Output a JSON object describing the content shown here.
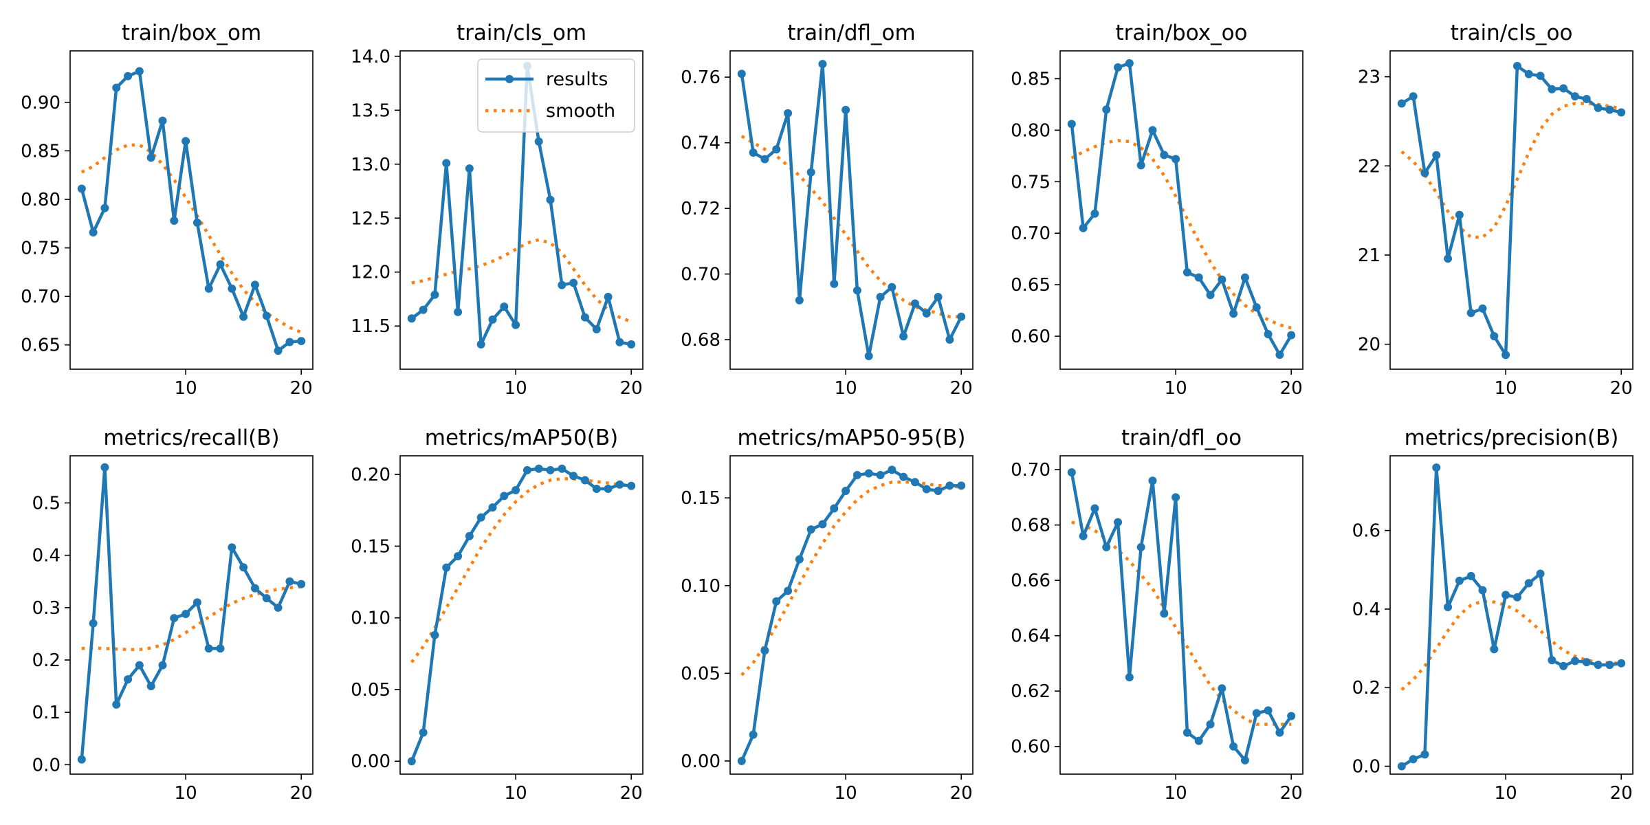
{
  "colors": {
    "results": "#1f77b4",
    "smooth": "#ff7f0e",
    "axes": "#000000",
    "legend_border": "#cccccc"
  },
  "legend": {
    "results_label": "results",
    "smooth_label": "smooth",
    "placement": "top-right",
    "panel": 1
  },
  "chart_data": [
    {
      "type": "line",
      "title": "train/box_om",
      "xlabel": "",
      "ylabel": "",
      "xlim": [
        0,
        21
      ],
      "ylim": [
        0.625,
        0.953
      ],
      "xticks": [
        10,
        20
      ],
      "yticks": [
        0.65,
        0.7,
        0.75,
        0.8,
        0.85,
        0.9
      ],
      "ytick_labels": [
        "0.65",
        "0.70",
        "0.75",
        "0.80",
        "0.85",
        "0.90"
      ],
      "x": [
        1,
        2,
        3,
        4,
        5,
        6,
        7,
        8,
        9,
        10,
        11,
        12,
        13,
        14,
        15,
        16,
        17,
        18,
        19,
        20
      ],
      "series": [
        {
          "name": "results",
          "style": "line-marker",
          "values": [
            0.811,
            0.766,
            0.791,
            0.915,
            0.927,
            0.932,
            0.843,
            0.881,
            0.778,
            0.86,
            0.776,
            0.708,
            0.733,
            0.708,
            0.679,
            0.712,
            0.68,
            0.644,
            0.653,
            0.654
          ]
        },
        {
          "name": "smooth",
          "style": "dotted",
          "values": [
            0.828,
            0.834,
            0.843,
            0.851,
            0.856,
            0.856,
            0.849,
            0.836,
            0.82,
            0.802,
            0.783,
            0.763,
            0.743,
            0.724,
            0.707,
            0.694,
            0.683,
            0.675,
            0.668,
            0.663
          ]
        }
      ]
    },
    {
      "type": "line",
      "title": "train/cls_om",
      "xlabel": "",
      "ylabel": "",
      "xlim": [
        0,
        21
      ],
      "ylim": [
        11.1,
        14.05
      ],
      "xticks": [
        10,
        20
      ],
      "yticks": [
        11.5,
        12.0,
        12.5,
        13.0,
        13.5,
        14.0
      ],
      "ytick_labels": [
        "11.5",
        "12.0",
        "12.5",
        "13.0",
        "13.5",
        "14.0"
      ],
      "x": [
        1,
        2,
        3,
        4,
        5,
        6,
        7,
        8,
        9,
        10,
        11,
        12,
        13,
        14,
        15,
        16,
        17,
        18,
        19,
        20
      ],
      "series": [
        {
          "name": "results",
          "style": "line-marker",
          "values": [
            11.57,
            11.65,
            11.79,
            13.01,
            11.63,
            12.96,
            11.33,
            11.56,
            11.68,
            11.51,
            13.91,
            13.21,
            12.67,
            11.88,
            11.9,
            11.58,
            11.47,
            11.77,
            11.35,
            11.33
          ]
        },
        {
          "name": "smooth",
          "style": "dotted",
          "values": [
            11.9,
            11.92,
            11.95,
            11.98,
            12.01,
            12.03,
            12.06,
            12.1,
            12.15,
            12.21,
            12.27,
            12.3,
            12.27,
            12.18,
            12.03,
            11.88,
            11.75,
            11.65,
            11.58,
            11.54
          ]
        }
      ]
    },
    {
      "type": "line",
      "title": "train/dfl_om",
      "xlabel": "",
      "ylabel": "",
      "xlim": [
        0,
        21
      ],
      "ylim": [
        0.671,
        0.768
      ],
      "xticks": [
        10,
        20
      ],
      "yticks": [
        0.68,
        0.7,
        0.72,
        0.74,
        0.76
      ],
      "ytick_labels": [
        "0.68",
        "0.70",
        "0.72",
        "0.74",
        "0.76"
      ],
      "x": [
        1,
        2,
        3,
        4,
        5,
        6,
        7,
        8,
        9,
        10,
        11,
        12,
        13,
        14,
        15,
        16,
        17,
        18,
        19,
        20
      ],
      "series": [
        {
          "name": "results",
          "style": "line-marker",
          "values": [
            0.761,
            0.737,
            0.735,
            0.738,
            0.749,
            0.692,
            0.731,
            0.764,
            0.697,
            0.75,
            0.695,
            0.675,
            0.693,
            0.696,
            0.681,
            0.691,
            0.688,
            0.693,
            0.68,
            0.687
          ]
        },
        {
          "name": "smooth",
          "style": "dotted",
          "values": [
            0.742,
            0.74,
            0.738,
            0.736,
            0.733,
            0.73,
            0.726,
            0.722,
            0.717,
            0.712,
            0.707,
            0.702,
            0.698,
            0.695,
            0.692,
            0.69,
            0.689,
            0.688,
            0.687,
            0.687
          ]
        }
      ]
    },
    {
      "type": "line",
      "title": "train/box_oo",
      "xlabel": "",
      "ylabel": "",
      "xlim": [
        0,
        21
      ],
      "ylim": [
        0.568,
        0.877
      ],
      "xticks": [
        10,
        20
      ],
      "yticks": [
        0.6,
        0.65,
        0.7,
        0.75,
        0.8,
        0.85
      ],
      "ytick_labels": [
        "0.60",
        "0.65",
        "0.70",
        "0.75",
        "0.80",
        "0.85"
      ],
      "x": [
        1,
        2,
        3,
        4,
        5,
        6,
        7,
        8,
        9,
        10,
        11,
        12,
        13,
        14,
        15,
        16,
        17,
        18,
        19,
        20
      ],
      "series": [
        {
          "name": "results",
          "style": "line-marker",
          "values": [
            0.806,
            0.705,
            0.719,
            0.82,
            0.861,
            0.865,
            0.766,
            0.8,
            0.776,
            0.772,
            0.662,
            0.657,
            0.64,
            0.655,
            0.622,
            0.657,
            0.628,
            0.602,
            0.582,
            0.601
          ]
        },
        {
          "name": "smooth",
          "style": "dotted",
          "values": [
            0.773,
            0.779,
            0.784,
            0.788,
            0.79,
            0.789,
            0.783,
            0.772,
            0.756,
            0.736,
            0.714,
            0.692,
            0.672,
            0.655,
            0.641,
            0.63,
            0.622,
            0.616,
            0.611,
            0.608
          ]
        }
      ]
    },
    {
      "type": "line",
      "title": "train/cls_oo",
      "xlabel": "",
      "ylabel": "",
      "xlim": [
        0,
        21
      ],
      "ylim": [
        19.72,
        23.29
      ],
      "xticks": [
        10,
        20
      ],
      "yticks": [
        20,
        21,
        22,
        23
      ],
      "ytick_labels": [
        "20",
        "21",
        "22",
        "23"
      ],
      "x": [
        1,
        2,
        3,
        4,
        5,
        6,
        7,
        8,
        9,
        10,
        11,
        12,
        13,
        14,
        15,
        16,
        17,
        18,
        19,
        20
      ],
      "series": [
        {
          "name": "results",
          "style": "line-marker",
          "values": [
            22.7,
            22.78,
            21.92,
            22.12,
            20.96,
            21.45,
            20.35,
            20.4,
            20.09,
            19.88,
            23.12,
            23.03,
            23.01,
            22.86,
            22.87,
            22.78,
            22.75,
            22.65,
            22.63,
            22.6
          ]
        },
        {
          "name": "smooth",
          "style": "dotted",
          "values": [
            22.16,
            22.05,
            21.9,
            21.7,
            21.49,
            21.31,
            21.2,
            21.2,
            21.31,
            21.55,
            21.85,
            22.15,
            22.41,
            22.58,
            22.67,
            22.7,
            22.7,
            22.69,
            22.67,
            22.64
          ]
        }
      ]
    },
    {
      "type": "line",
      "title": "metrics/recall(B)",
      "xlabel": "",
      "ylabel": "",
      "xlim": [
        0,
        21
      ],
      "ylim": [
        -0.018,
        0.59
      ],
      "xticks": [
        10,
        20
      ],
      "yticks": [
        0.0,
        0.1,
        0.2,
        0.3,
        0.4,
        0.5
      ],
      "ytick_labels": [
        "0.0",
        "0.1",
        "0.2",
        "0.3",
        "0.4",
        "0.5"
      ],
      "x": [
        1,
        2,
        3,
        4,
        5,
        6,
        7,
        8,
        9,
        10,
        11,
        12,
        13,
        14,
        15,
        16,
        17,
        18,
        19,
        20
      ],
      "series": [
        {
          "name": "results",
          "style": "line-marker",
          "values": [
            0.01,
            0.27,
            0.568,
            0.115,
            0.163,
            0.19,
            0.15,
            0.19,
            0.28,
            0.288,
            0.31,
            0.222,
            0.222,
            0.415,
            0.377,
            0.337,
            0.318,
            0.3,
            0.35,
            0.345
          ]
        },
        {
          "name": "smooth",
          "style": "dotted",
          "values": [
            0.222,
            0.223,
            0.222,
            0.221,
            0.22,
            0.22,
            0.223,
            0.229,
            0.239,
            0.252,
            0.267,
            0.282,
            0.296,
            0.308,
            0.318,
            0.325,
            0.331,
            0.335,
            0.338,
            0.34
          ]
        }
      ]
    },
    {
      "type": "line",
      "title": "metrics/mAP50(B)",
      "xlabel": "",
      "ylabel": "",
      "xlim": [
        0,
        21
      ],
      "ylim": [
        -0.009,
        0.213
      ],
      "xticks": [
        10,
        20
      ],
      "yticks": [
        0.0,
        0.05,
        0.1,
        0.15,
        0.2
      ],
      "ytick_labels": [
        "0.00",
        "0.05",
        "0.10",
        "0.15",
        "0.20"
      ],
      "x": [
        1,
        2,
        3,
        4,
        5,
        6,
        7,
        8,
        9,
        10,
        11,
        12,
        13,
        14,
        15,
        16,
        17,
        18,
        19,
        20
      ],
      "series": [
        {
          "name": "results",
          "style": "line-marker",
          "values": [
            0.0,
            0.02,
            0.088,
            0.135,
            0.143,
            0.157,
            0.17,
            0.177,
            0.185,
            0.189,
            0.203,
            0.204,
            0.203,
            0.204,
            0.199,
            0.196,
            0.19,
            0.19,
            0.193,
            0.192
          ]
        },
        {
          "name": "smooth",
          "style": "dotted",
          "values": [
            0.069,
            0.08,
            0.093,
            0.107,
            0.121,
            0.135,
            0.149,
            0.161,
            0.172,
            0.181,
            0.188,
            0.193,
            0.196,
            0.197,
            0.197,
            0.196,
            0.195,
            0.194,
            0.193,
            0.192
          ]
        }
      ]
    },
    {
      "type": "line",
      "title": "metrics/mAP50-95(B)",
      "xlabel": "",
      "ylabel": "",
      "xlim": [
        0,
        21
      ],
      "ylim": [
        -0.0075,
        0.174
      ],
      "xticks": [
        10,
        20
      ],
      "yticks": [
        0.0,
        0.05,
        0.1,
        0.15
      ],
      "ytick_labels": [
        "0.00",
        "0.05",
        "0.10",
        "0.15"
      ],
      "x": [
        1,
        2,
        3,
        4,
        5,
        6,
        7,
        8,
        9,
        10,
        11,
        12,
        13,
        14,
        15,
        16,
        17,
        18,
        19,
        20
      ],
      "series": [
        {
          "name": "results",
          "style": "line-marker",
          "values": [
            0.0,
            0.015,
            0.063,
            0.091,
            0.097,
            0.115,
            0.132,
            0.135,
            0.144,
            0.154,
            0.163,
            0.164,
            0.163,
            0.166,
            0.162,
            0.159,
            0.155,
            0.154,
            0.157,
            0.157
          ]
        },
        {
          "name": "smooth",
          "style": "dotted",
          "values": [
            0.049,
            0.056,
            0.066,
            0.077,
            0.089,
            0.101,
            0.113,
            0.124,
            0.134,
            0.142,
            0.149,
            0.154,
            0.157,
            0.159,
            0.159,
            0.159,
            0.158,
            0.157,
            0.157,
            0.156
          ]
        }
      ]
    },
    {
      "type": "line",
      "title": "train/dfl_oo",
      "xlabel": "",
      "ylabel": "",
      "xlim": [
        0,
        21
      ],
      "ylim": [
        0.59,
        0.705
      ],
      "xticks": [
        10,
        20
      ],
      "yticks": [
        0.6,
        0.62,
        0.64,
        0.66,
        0.68,
        0.7
      ],
      "ytick_labels": [
        "0.60",
        "0.62",
        "0.64",
        "0.66",
        "0.68",
        "0.70"
      ],
      "x": [
        1,
        2,
        3,
        4,
        5,
        6,
        7,
        8,
        9,
        10,
        11,
        12,
        13,
        14,
        15,
        16,
        17,
        18,
        19,
        20
      ],
      "series": [
        {
          "name": "results",
          "style": "line-marker",
          "values": [
            0.699,
            0.676,
            0.686,
            0.672,
            0.681,
            0.625,
            0.672,
            0.696,
            0.648,
            0.69,
            0.605,
            0.602,
            0.608,
            0.621,
            0.6,
            0.595,
            0.612,
            0.613,
            0.605,
            0.611
          ]
        },
        {
          "name": "smooth",
          "style": "dotted",
          "values": [
            0.681,
            0.68,
            0.678,
            0.675,
            0.671,
            0.667,
            0.662,
            0.657,
            0.65,
            0.643,
            0.636,
            0.629,
            0.622,
            0.617,
            0.613,
            0.61,
            0.608,
            0.608,
            0.608,
            0.608
          ]
        }
      ]
    },
    {
      "type": "line",
      "title": "metrics/precision(B)",
      "xlabel": "",
      "ylabel": "",
      "xlim": [
        0,
        21
      ],
      "ylim": [
        -0.02,
        0.79
      ],
      "xticks": [
        10,
        20
      ],
      "yticks": [
        0.0,
        0.2,
        0.4,
        0.6
      ],
      "ytick_labels": [
        "0.0",
        "0.2",
        "0.4",
        "0.6"
      ],
      "x": [
        1,
        2,
        3,
        4,
        5,
        6,
        7,
        8,
        9,
        10,
        11,
        12,
        13,
        14,
        15,
        16,
        17,
        18,
        19,
        20
      ],
      "series": [
        {
          "name": "results",
          "style": "line-marker",
          "values": [
            0.0,
            0.018,
            0.03,
            0.76,
            0.405,
            0.472,
            0.484,
            0.448,
            0.298,
            0.436,
            0.43,
            0.466,
            0.49,
            0.27,
            0.255,
            0.268,
            0.265,
            0.258,
            0.258,
            0.262
          ]
        },
        {
          "name": "smooth",
          "style": "dotted",
          "values": [
            0.195,
            0.22,
            0.255,
            0.3,
            0.345,
            0.385,
            0.41,
            0.42,
            0.418,
            0.41,
            0.395,
            0.372,
            0.345,
            0.318,
            0.295,
            0.28,
            0.27,
            0.265,
            0.263,
            0.262
          ]
        }
      ]
    }
  ]
}
